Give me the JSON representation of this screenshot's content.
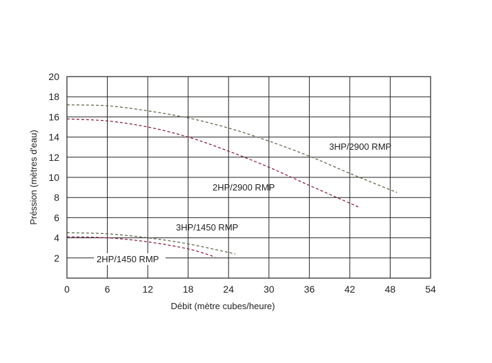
{
  "chart_data": {
    "type": "line",
    "xlabel": "Débit (mètre cubes/heure)",
    "ylabel": "Préssion (mètres d'eau)",
    "xlim": [
      0,
      54
    ],
    "ylim": [
      0,
      20
    ],
    "x_ticks": [
      0,
      6,
      12,
      18,
      24,
      30,
      36,
      42,
      48,
      54
    ],
    "y_ticks": [
      2,
      4,
      6,
      8,
      10,
      12,
      14,
      16,
      18,
      20
    ],
    "highlight_x": 6,
    "grid": true,
    "series": [
      {
        "name": "3HP/2900 RMP",
        "color": "#5f6b4a",
        "x": [
          0,
          6,
          12,
          18,
          24,
          30,
          36,
          42,
          49
        ],
        "y": [
          17.2,
          17.1,
          16.6,
          15.9,
          14.9,
          13.6,
          12.1,
          10.4,
          8.5
        ]
      },
      {
        "name": "2HP/2900 RMP",
        "color": "#8a2244",
        "x": [
          0,
          6,
          12,
          18,
          24,
          30,
          36,
          43.5
        ],
        "y": [
          15.8,
          15.6,
          15.0,
          14.0,
          12.6,
          11.0,
          9.2,
          7.0
        ]
      },
      {
        "name": "3HP/1450 RMP",
        "color": "#5f6b4a",
        "x": [
          0,
          6,
          12,
          18,
          25
        ],
        "y": [
          4.5,
          4.4,
          4.0,
          3.4,
          2.4
        ]
      },
      {
        "name": "2HP/1450 RMP",
        "color": "#8a2244",
        "x": [
          0,
          6,
          12,
          18,
          22
        ],
        "y": [
          4.1,
          4.0,
          3.6,
          2.9,
          2.1
        ]
      }
    ]
  }
}
